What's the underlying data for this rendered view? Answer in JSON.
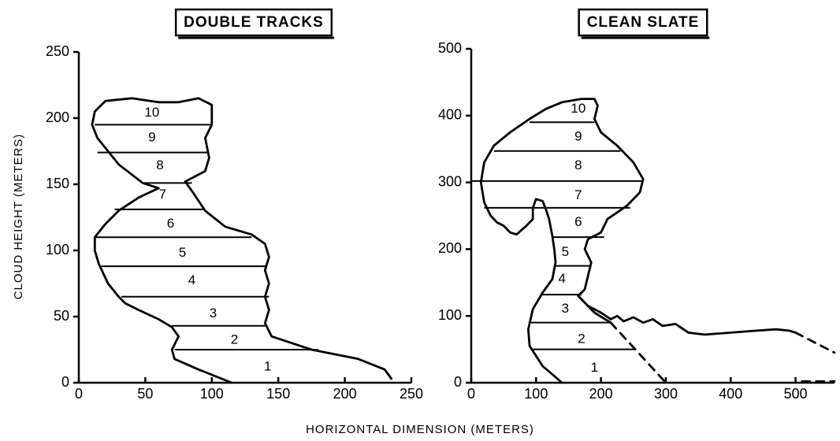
{
  "chart_data": [
    {
      "type": "outline",
      "title": "DOUBLE TRACKS",
      "ylabel": "CLOUD HEIGHT (METERS)",
      "xlabel": "HORIZONTAL DIMENSION (METERS)",
      "xlim": [
        0,
        250
      ],
      "xticks": [
        0,
        50,
        100,
        150,
        200,
        250
      ],
      "ylim": [
        0,
        250
      ],
      "yticks": [
        0,
        50,
        100,
        150,
        200,
        250
      ],
      "color": "#000000",
      "series": [
        {
          "dashed": false,
          "x": [
            115,
            90,
            72,
            70,
            75,
            70,
            60,
            45,
            35,
            30,
            22,
            15,
            12,
            12,
            20,
            30,
            45,
            60,
            48,
            30,
            14,
            10,
            12,
            20,
            40,
            60,
            75,
            90,
            100,
            100,
            95,
            98,
            95,
            80,
            85,
            95,
            110,
            130,
            140,
            143,
            140,
            143,
            140,
            143,
            140,
            145,
            175,
            210,
            230,
            235
          ],
          "y": [
            0,
            10,
            18,
            25,
            35,
            42,
            48,
            55,
            60,
            65,
            75,
            90,
            100,
            110,
            120,
            130,
            140,
            147,
            151,
            165,
            185,
            195,
            205,
            213,
            215,
            212,
            212,
            215,
            210,
            195,
            185,
            170,
            160,
            152,
            145,
            130,
            118,
            112,
            105,
            95,
            85,
            75,
            65,
            55,
            45,
            35,
            25,
            18,
            10,
            3
          ]
        }
      ],
      "boundaries": [
        {
          "y": 25,
          "x": [
            72,
            180
          ]
        },
        {
          "y": 43,
          "x": [
            70,
            140
          ]
        },
        {
          "y": 65,
          "x": [
            32,
            143
          ]
        },
        {
          "y": 88,
          "x": [
            17,
            141
          ]
        },
        {
          "y": 110,
          "x": [
            12,
            130
          ]
        },
        {
          "y": 131,
          "x": [
            27,
            95
          ]
        },
        {
          "y": 151,
          "x": [
            48,
            85
          ]
        },
        {
          "y": 174,
          "x": [
            14,
            97
          ]
        },
        {
          "y": 195,
          "x": [
            12,
            100
          ]
        }
      ],
      "layers": [
        {
          "label": "1",
          "x": 142,
          "y": 12
        },
        {
          "label": "2",
          "x": 117,
          "y": 32
        },
        {
          "label": "3",
          "x": 101,
          "y": 52
        },
        {
          "label": "4",
          "x": 85,
          "y": 77
        },
        {
          "label": "5",
          "x": 78,
          "y": 98
        },
        {
          "label": "6",
          "x": 69,
          "y": 120
        },
        {
          "label": "7",
          "x": 63,
          "y": 142
        },
        {
          "label": "8",
          "x": 61,
          "y": 164
        },
        {
          "label": "9",
          "x": 55,
          "y": 185
        },
        {
          "label": "10",
          "x": 55,
          "y": 204
        }
      ]
    },
    {
      "type": "outline",
      "title": "CLEAN SLATE",
      "xlim": [
        0,
        560
      ],
      "xticks": [
        0,
        100,
        200,
        300,
        400,
        500
      ],
      "ylim": [
        0,
        500
      ],
      "yticks": [
        0,
        100,
        200,
        300,
        400,
        500
      ],
      "color": "#000000",
      "series": [
        {
          "dashed": false,
          "x": [
            140,
            110,
            90,
            88,
            95,
            110,
            125,
            130,
            128,
            125,
            120,
            115,
            110,
            100,
            95,
            95,
            85,
            70,
            60,
            50,
            40,
            30,
            20,
            15,
            20,
            35,
            60,
            90,
            115,
            140,
            170,
            190,
            195,
            190,
            200,
            225,
            250,
            265,
            260,
            240,
            210,
            200,
            180,
            175,
            185,
            180,
            175,
            165,
            180,
            200,
            215,
            225,
            235,
            250,
            265,
            280,
            295,
            315,
            335,
            360,
            400,
            440,
            470,
            490,
            500
          ],
          "y": [
            0,
            25,
            55,
            80,
            110,
            135,
            155,
            180,
            200,
            220,
            245,
            260,
            272,
            275,
            262,
            245,
            235,
            222,
            225,
            235,
            240,
            250,
            270,
            300,
            330,
            355,
            375,
            395,
            410,
            420,
            425,
            425,
            415,
            395,
            375,
            355,
            330,
            305,
            285,
            265,
            245,
            225,
            215,
            200,
            180,
            160,
            140,
            130,
            115,
            105,
            95,
            100,
            92,
            98,
            90,
            95,
            85,
            88,
            75,
            72,
            75,
            78,
            80,
            78,
            75
          ]
        },
        {
          "dashed": false,
          "x": [
            165,
            190,
            215
          ],
          "y": [
            130,
            105,
            90
          ]
        },
        {
          "dashed": true,
          "x": [
            215,
            300
          ],
          "y": [
            90,
            0
          ]
        },
        {
          "dashed": true,
          "x": [
            500,
            530,
            560
          ],
          "y": [
            75,
            60,
            45
          ]
        },
        {
          "dashed": true,
          "x": [
            510,
            560
          ],
          "y": [
            2,
            2
          ]
        }
      ],
      "boundaries": [
        {
          "y": 50,
          "x": [
            95,
            253
          ]
        },
        {
          "y": 90,
          "x": [
            92,
            215
          ]
        },
        {
          "y": 132,
          "x": [
            108,
            170
          ]
        },
        {
          "y": 175,
          "x": [
            128,
            185
          ]
        },
        {
          "y": 218,
          "x": [
            125,
            205
          ]
        },
        {
          "y": 262,
          "x": [
            20,
            245
          ]
        },
        {
          "y": 302,
          "x": [
            0,
            265
          ]
        },
        {
          "y": 347,
          "x": [
            35,
            230
          ]
        },
        {
          "y": 390,
          "x": [
            90,
            190
          ]
        }
      ],
      "layers": [
        {
          "label": "1",
          "x": 190,
          "y": 22
        },
        {
          "label": "2",
          "x": 170,
          "y": 65
        },
        {
          "label": "3",
          "x": 145,
          "y": 110
        },
        {
          "label": "4",
          "x": 140,
          "y": 155
        },
        {
          "label": "5",
          "x": 145,
          "y": 195
        },
        {
          "label": "6",
          "x": 165,
          "y": 240
        },
        {
          "label": "7",
          "x": 165,
          "y": 280
        },
        {
          "label": "8",
          "x": 165,
          "y": 325
        },
        {
          "label": "9",
          "x": 165,
          "y": 368
        },
        {
          "label": "10",
          "x": 165,
          "y": 410
        }
      ]
    }
  ]
}
